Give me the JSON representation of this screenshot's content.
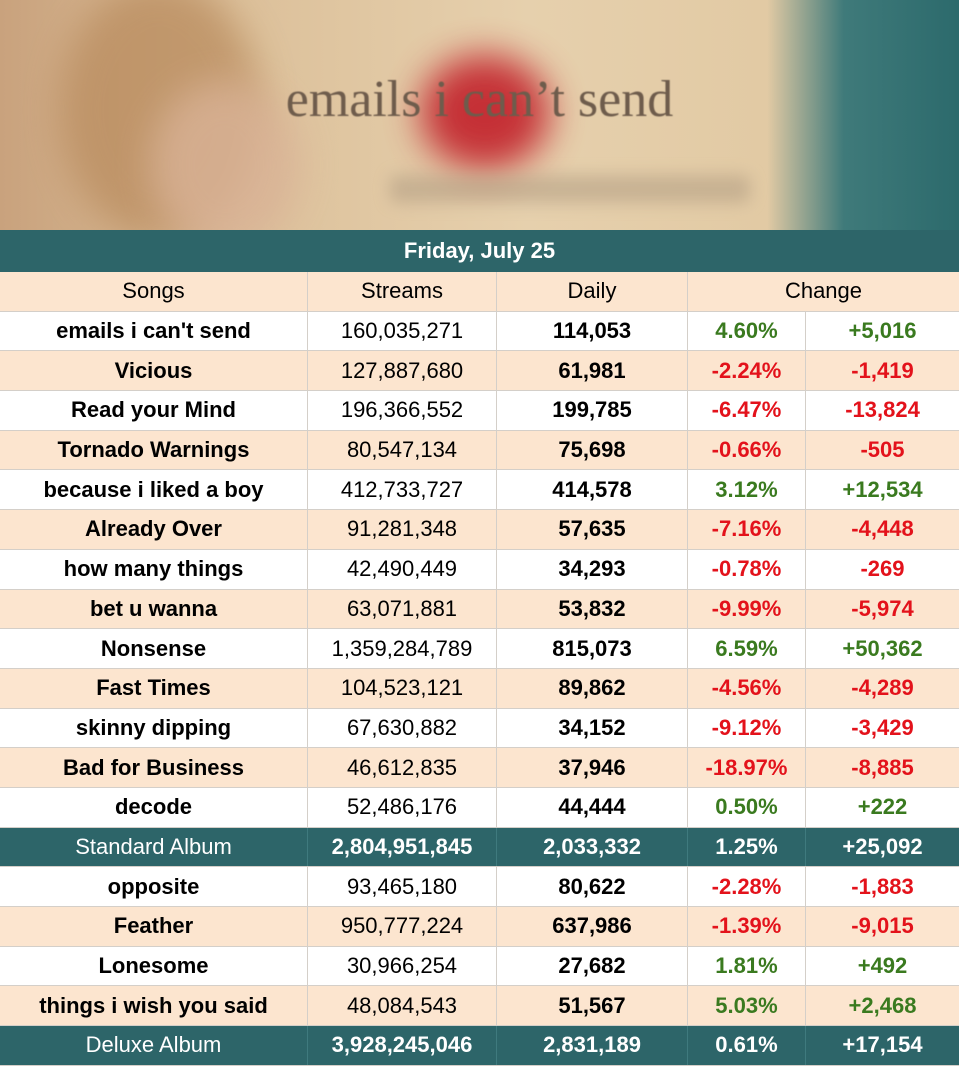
{
  "banner": {
    "title": "emails i can’t send"
  },
  "table": {
    "date": "Friday, July 25",
    "headers": [
      "Songs",
      "Streams",
      "Daily",
      "Change"
    ],
    "standard": {
      "songs": [
        [
          "emails i can't send",
          "160,035,271",
          "114,053",
          "4.60%",
          "+5,016"
        ],
        [
          "Vicious",
          "127,887,680",
          "61,981",
          "-2.24%",
          "-1,419"
        ],
        [
          "Read your Mind",
          "196,366,552",
          "199,785",
          "-6.47%",
          "-13,824"
        ],
        [
          "Tornado Warnings",
          "80,547,134",
          "75,698",
          "-0.66%",
          "-505"
        ],
        [
          "because i liked a boy",
          "412,733,727",
          "414,578",
          "3.12%",
          "+12,534"
        ],
        [
          "Already Over",
          "91,281,348",
          "57,635",
          "-7.16%",
          "-4,448"
        ],
        [
          "how many things",
          "42,490,449",
          "34,293",
          "-0.78%",
          "-269"
        ],
        [
          "bet u wanna",
          "63,071,881",
          "53,832",
          "-9.99%",
          "-5,974"
        ],
        [
          "Nonsense",
          "1,359,284,789",
          "815,073",
          "6.59%",
          "+50,362"
        ],
        [
          "Fast Times",
          "104,523,121",
          "89,862",
          "-4.56%",
          "-4,289"
        ],
        [
          "skinny dipping",
          "67,630,882",
          "34,152",
          "-9.12%",
          "-3,429"
        ],
        [
          "Bad for Business",
          "46,612,835",
          "37,946",
          "-18.97%",
          "-8,885"
        ],
        [
          "decode",
          "52,486,176",
          "44,444",
          "0.50%",
          "+222"
        ]
      ],
      "total": [
        "Standard Album",
        "2,804,951,845",
        "2,033,332",
        "1.25%",
        "+25,092"
      ]
    },
    "deluxe": {
      "songs": [
        [
          "opposite",
          "93,465,180",
          "80,622",
          "-2.28%",
          "-1,883"
        ],
        [
          "Feather",
          "950,777,224",
          "637,986",
          "-1.39%",
          "-9,015"
        ],
        [
          "Lonesome",
          "30,966,254",
          "27,682",
          "1.81%",
          "+492"
        ],
        [
          "things i wish you said",
          "48,084,543",
          "51,567",
          "5.03%",
          "+2,468"
        ]
      ],
      "total": [
        "Deluxe Album",
        "3,928,245,046",
        "2,831,189",
        "0.61%",
        "+17,154"
      ]
    }
  }
}
